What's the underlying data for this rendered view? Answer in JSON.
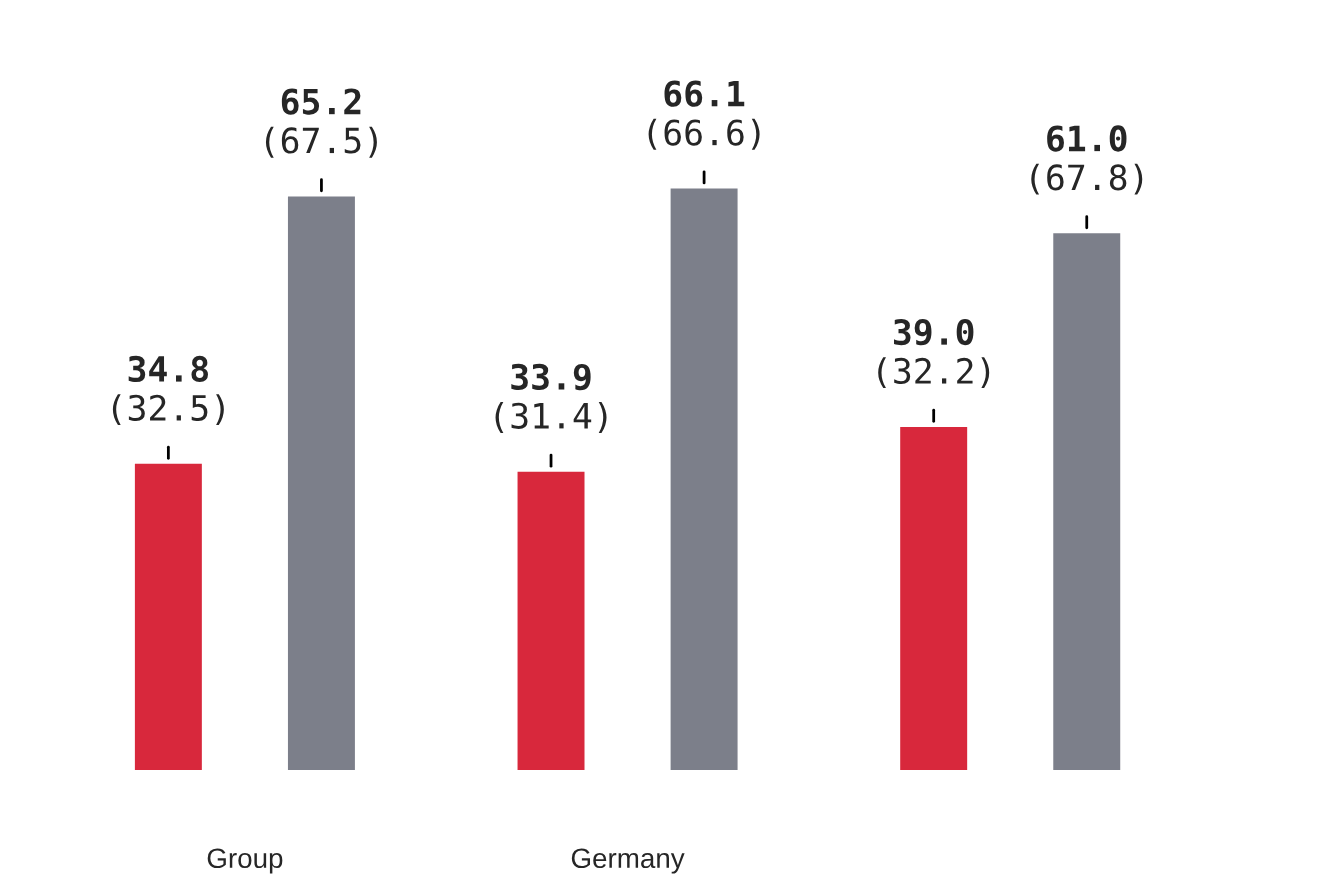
{
  "chart_data": {
    "type": "bar",
    "categories": [
      "Group",
      "Germany",
      null
    ],
    "series": [
      {
        "color": "#d8283c",
        "values": [
          34.8,
          33.9,
          39.0
        ],
        "value_labels": [
          "34.8\n(32.5)",
          "33.9\n(31.4)",
          "39.0\n(32.2)"
        ]
      },
      {
        "color": "#7c7f8a",
        "values": [
          65.2,
          66.1,
          61.0
        ],
        "value_labels": [
          "65.2\n(67.5)",
          "66.1\n(66.6)",
          "61.0\n(67.8)"
        ]
      }
    ],
    "grid": false,
    "legend": false
  }
}
